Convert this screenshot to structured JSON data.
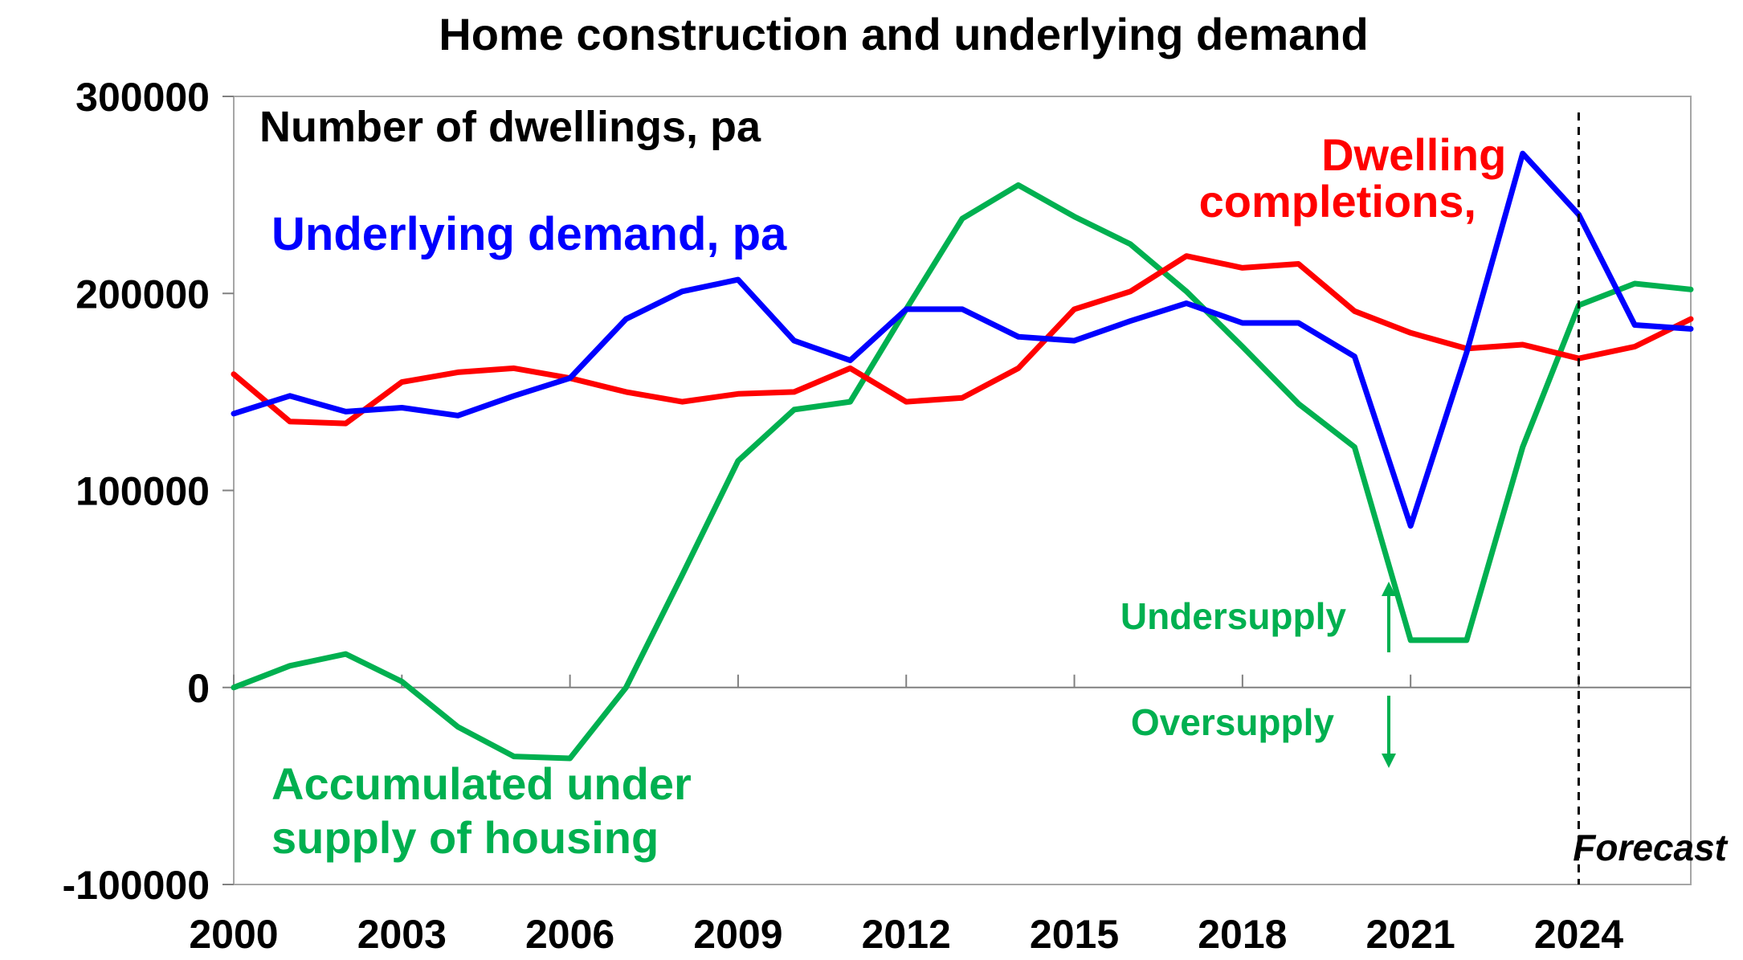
{
  "chart_data": {
    "type": "line",
    "title": "Home construction and underlying demand",
    "ylabel": "Number of dwellings, pa",
    "xlim": [
      2000,
      2026
    ],
    "ylim": [
      -100000,
      300000
    ],
    "y_ticks": [
      "300000",
      "200000",
      "100000",
      "0",
      "-100000"
    ],
    "x_ticks": [
      "2000",
      "2003",
      "2006",
      "2009",
      "2012",
      "2015",
      "2018",
      "2021",
      "2024"
    ],
    "grid": false,
    "series": [
      {
        "name": "Underlying demand, pa",
        "color": "#0000FF",
        "x": [
          2000,
          2001,
          2002,
          2003,
          2004,
          2005,
          2006,
          2007,
          2008,
          2009,
          2010,
          2011,
          2012,
          2013,
          2014,
          2015,
          2016,
          2017,
          2018,
          2019,
          2020,
          2021,
          2022,
          2023,
          2024,
          2025,
          2026
        ],
        "values": [
          139000,
          148000,
          140000,
          142000,
          138000,
          148000,
          157000,
          187000,
          201000,
          207000,
          176000,
          166000,
          192000,
          192000,
          178000,
          176000,
          186000,
          195000,
          185000,
          185000,
          168000,
          82000,
          170000,
          271000,
          240000,
          184000,
          182000
        ]
      },
      {
        "name": "Dwelling completions,",
        "color": "#FF0000",
        "x": [
          2000,
          2001,
          2002,
          2003,
          2004,
          2005,
          2006,
          2007,
          2008,
          2009,
          2010,
          2011,
          2012,
          2013,
          2014,
          2015,
          2016,
          2017,
          2018,
          2019,
          2020,
          2021,
          2022,
          2023,
          2024,
          2025,
          2026
        ],
        "values": [
          159000,
          135000,
          134000,
          155000,
          160000,
          162000,
          157000,
          150000,
          145000,
          149000,
          150000,
          162000,
          145000,
          147000,
          162000,
          192000,
          201000,
          219000,
          213000,
          215000,
          191000,
          180000,
          172000,
          174000,
          167000,
          173000,
          187000
        ]
      },
      {
        "name": "Accumulated under supply of housing",
        "color": "#00B050",
        "x": [
          2000,
          2001,
          2002,
          2003,
          2004,
          2005,
          2006,
          2007,
          2008,
          2009,
          2010,
          2011,
          2012,
          2013,
          2014,
          2015,
          2016,
          2017,
          2018,
          2019,
          2020,
          2021,
          2022,
          2023,
          2024,
          2025,
          2026
        ],
        "values": [
          0,
          11000,
          17000,
          3000,
          -20000,
          -35000,
          -36000,
          0,
          57000,
          115000,
          141000,
          145000,
          192000,
          238000,
          255000,
          239000,
          225000,
          201000,
          173000,
          144000,
          122000,
          24000,
          24000,
          122000,
          194000,
          205000,
          202000
        ]
      }
    ],
    "annotations": {
      "undersupply": "Undersupply",
      "oversupply": "Oversupply",
      "forecast": "Forecast",
      "forecast_year": 2024
    }
  }
}
